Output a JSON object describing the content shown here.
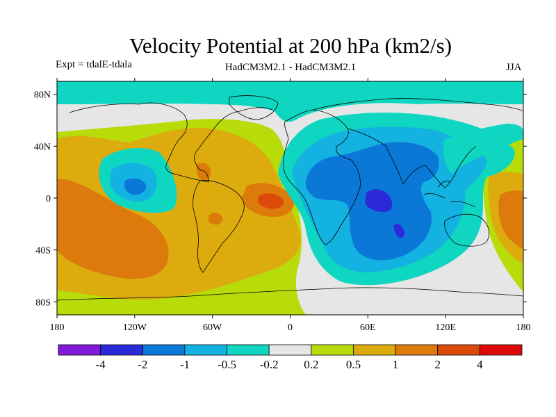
{
  "title": "Velocity Potential at 200 hPa (km2/s)",
  "subtitle_left": "Expt = tdalE-tdala",
  "subtitle_center": "HadCM3M2.1 - HadCM3M2.1",
  "subtitle_right": "JJA",
  "chart_data": {
    "type": "heatmap",
    "projection": "cylindrical-equidistant",
    "title": "Velocity Potential at 200 hPa (km2/s)",
    "x_ticks": [
      "180",
      "120W",
      "60W",
      "0",
      "60E",
      "120E",
      "180"
    ],
    "x_tick_values": [
      -180,
      -120,
      -60,
      0,
      60,
      120,
      180
    ],
    "y_ticks": [
      "80N",
      "40N",
      "0",
      "40S",
      "80S"
    ],
    "y_tick_values": [
      80,
      40,
      0,
      -40,
      -80
    ],
    "xlim": [
      -180,
      180
    ],
    "ylim": [
      -90,
      90
    ],
    "colorbar": {
      "labels": [
        "-4",
        "-2",
        "-1",
        "-0.5",
        "-0.2",
        "0.2",
        "0.5",
        "1",
        "2",
        "4"
      ],
      "colors": [
        "#7f1bd8",
        "#2a2ad8",
        "#0b78d8",
        "#13b2e0",
        "#0fd6c0",
        "#e6e6e6",
        "#b8dc0a",
        "#dcac0e",
        "#dc7a0c",
        "#dc4a0a",
        "#dc0a0a"
      ]
    },
    "regions": [
      {
        "name": "Atlantic/Americas positive anomaly",
        "center": [
          -45,
          15
        ],
        "level": "0.5 to 1"
      },
      {
        "name": "Equatorial Atlantic maximum",
        "center": [
          -12,
          0
        ],
        "level": "2 to 4"
      },
      {
        "name": "Central Pacific positive anomaly",
        "center": [
          -145,
          -15
        ],
        "level": "1 to 2"
      },
      {
        "name": "East Pacific negative cell",
        "center": [
          -118,
          10
        ],
        "level": "-1 to -0.5"
      },
      {
        "name": "Indian Ocean / Asia negative anomaly",
        "center": [
          65,
          10
        ],
        "level": "-2 to -1"
      },
      {
        "name": "Indian Ocean minimum",
        "center": [
          70,
          0
        ],
        "level": "-4 to -2"
      },
      {
        "name": "Arctic band",
        "center": [
          0,
          85
        ],
        "level": "-0.5 to -0.2"
      },
      {
        "name": "West Pacific positive anomaly",
        "center": [
          175,
          -5
        ],
        "level": "1 to 2"
      }
    ]
  }
}
